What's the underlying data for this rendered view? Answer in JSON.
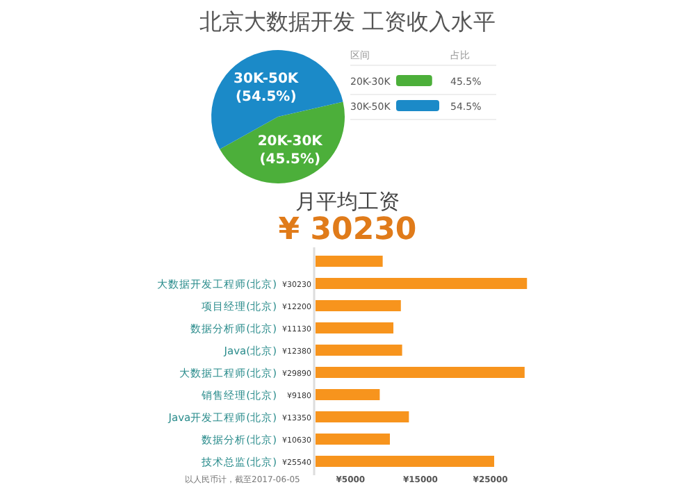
{
  "chart_data": [
    {
      "type": "pie",
      "title": "北京大数据开发 工资收入水平",
      "categories": [
        "20K-30K",
        "30K-50K"
      ],
      "values": [
        45.5,
        54.5
      ],
      "colors": [
        "#4caf3a",
        "#1b8ac8"
      ],
      "legend": "right",
      "value_labels": [
        "(45.5%)",
        "(54.5%)"
      ],
      "legend_title": "区间",
      "annotations": [
        "占比",
        "45.5%",
        "54.5%"
      ]
    },
    {
      "type": "bar",
      "orientation": "horizontal",
      "title": "月平均工资",
      "subtitle": "¥ 30230",
      "color": "#f7941d",
      "categories": [
        null,
        "大数据开发工程师(北京)",
        "项目经理(北京)",
        "数据分析师(北京)",
        "Java(北京)",
        "大数据工程师(北京)",
        "销售经理(北京)",
        "Java开发工程师(北京)",
        "数据分析(北京)",
        "技术总监(北京)"
      ],
      "values": [
        9600,
        30230,
        12200,
        11130,
        12380,
        29890,
        9180,
        13350,
        10630,
        25540
      ],
      "value_labels": [
        null,
        "¥30230",
        "¥12200",
        "¥11130",
        "¥12380",
        "¥29890",
        "¥9180",
        "¥13350",
        "¥10630",
        "¥25540"
      ],
      "xlim": [
        0,
        31000
      ],
      "xticks": [
        {
          "value": 5000,
          "label": "¥5000"
        },
        {
          "value": 15000,
          "label": "¥15000"
        },
        {
          "value": 25000,
          "label": "¥25000"
        }
      ],
      "grid": false,
      "annotations": [
        "以人民币计，截至2017-06-05"
      ]
    }
  ]
}
